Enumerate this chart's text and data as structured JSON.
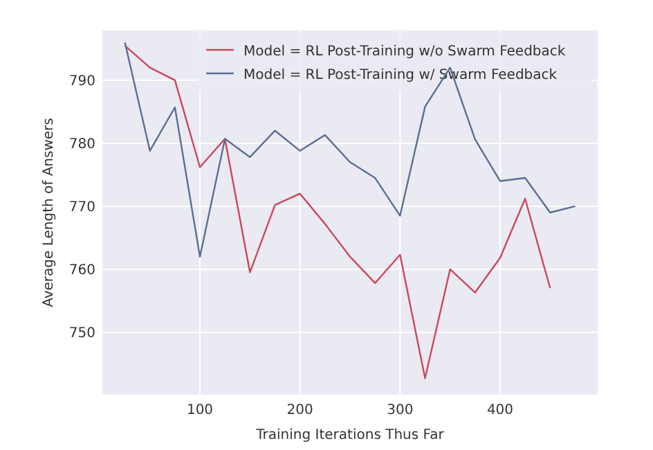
{
  "chart_data": {
    "type": "line",
    "xlabel": "Training Iterations Thus Far",
    "ylabel": "Average Length of Answers",
    "xlim": [
      2.5,
      497.5
    ],
    "xticks": [
      100,
      200,
      300,
      400
    ],
    "ylim": [
      740.1,
      797.9
    ],
    "yticks": [
      750,
      760,
      770,
      780,
      790
    ],
    "grid": true,
    "legend": "top right",
    "series": [
      {
        "name": "Model = RL Post-Training w/o Swarm Feedback",
        "color": "#c9485b",
        "x": [
          25,
          50,
          75,
          100,
          125,
          150,
          175,
          200,
          225,
          250,
          275,
          300,
          325,
          350,
          375,
          400,
          425,
          450
        ],
        "values": [
          795.5,
          792,
          790,
          776.2,
          780.7,
          759.5,
          770.2,
          772,
          767.2,
          762,
          757.8,
          762.3,
          742.7,
          760,
          756.3,
          761.8,
          771.2,
          757
        ]
      },
      {
        "name": "Model = RL Post-Training w/ Swarm Feedback",
        "color": "#5a6f92",
        "x": [
          25,
          50,
          75,
          100,
          125,
          150,
          175,
          200,
          225,
          250,
          275,
          300,
          325,
          350,
          375,
          400,
          425,
          450,
          475
        ],
        "values": [
          796,
          778.8,
          785.7,
          762,
          780.7,
          777.8,
          782,
          778.8,
          781.3,
          777,
          774.5,
          768.5,
          785.8,
          792,
          780.6,
          774,
          774.5,
          769,
          770
        ]
      }
    ]
  }
}
